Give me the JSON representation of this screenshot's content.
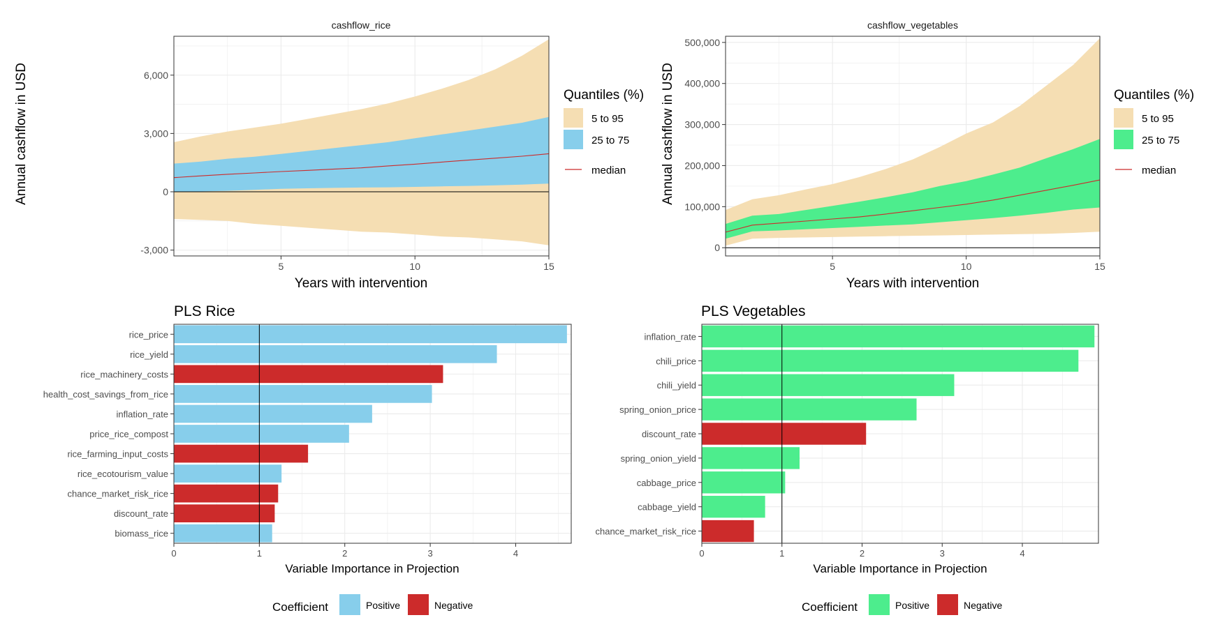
{
  "shared": {
    "ylabel": "Annual cashflow in USD",
    "xlabel": "Years with intervention",
    "vip_xlabel": "Variable Importance in Projection",
    "coefficient_label": "Coefficient",
    "positive_label": "Positive",
    "negative_label": "Negative",
    "quantiles_title": "Quantiles (%)",
    "q_outer_label": "5 to 95",
    "q_inner_label": "25 to 75",
    "median_label": "median"
  },
  "colors": {
    "outer_band": "#f5deb3",
    "rice_inner": "#87ceeb",
    "veg_inner": "#4ded8d",
    "median": "#cc2b2b",
    "negative": "#cc2b2b",
    "grid": "#ebebeb",
    "axis_text": "#4d4d4d"
  },
  "chart_data": [
    {
      "type": "area",
      "title": "cashflow_rice",
      "xlabel": "Years with intervention",
      "ylabel": "Annual cashflow in USD",
      "xlim": [
        1,
        15
      ],
      "ylim": [
        -3300,
        8000
      ],
      "x_ticks": [
        5,
        10,
        15
      ],
      "y_ticks": [
        -3000,
        0,
        3000,
        6000
      ],
      "y_tick_labels": [
        "-3,000",
        "0",
        "3,000",
        "6,000"
      ],
      "x": [
        1,
        2,
        3,
        4,
        5,
        6,
        7,
        8,
        9,
        10,
        11,
        12,
        13,
        14,
        15
      ],
      "series": [
        {
          "name": "5 to 95",
          "lower": [
            -1400,
            -1450,
            -1500,
            -1650,
            -1750,
            -1850,
            -1950,
            -2050,
            -2100,
            -2200,
            -2300,
            -2350,
            -2450,
            -2550,
            -2750
          ],
          "upper": [
            2550,
            2850,
            3100,
            3300,
            3500,
            3750,
            4000,
            4250,
            4550,
            4900,
            5300,
            5750,
            6300,
            7000,
            7850
          ]
        },
        {
          "name": "25 to 75",
          "lower": [
            0,
            20,
            50,
            100,
            150,
            180,
            200,
            220,
            230,
            250,
            280,
            300,
            330,
            370,
            420
          ],
          "upper": [
            1450,
            1550,
            1700,
            1800,
            1950,
            2100,
            2250,
            2400,
            2550,
            2750,
            2950,
            3150,
            3350,
            3550,
            3850
          ]
        },
        {
          "name": "median",
          "values": [
            730,
            820,
            900,
            970,
            1040,
            1100,
            1170,
            1230,
            1330,
            1420,
            1530,
            1630,
            1730,
            1830,
            1960
          ]
        }
      ]
    },
    {
      "type": "area",
      "title": "cashflow_vegetables",
      "xlabel": "Years with intervention",
      "ylabel": "Annual cashflow in USD",
      "xlim": [
        1,
        15
      ],
      "ylim": [
        -20000,
        515000
      ],
      "x_ticks": [
        5,
        10,
        15
      ],
      "y_ticks": [
        0,
        100000,
        200000,
        300000,
        400000,
        500000
      ],
      "y_tick_labels": [
        "0",
        "100,000",
        "200,000",
        "300,000",
        "400,000",
        "500,000"
      ],
      "x": [
        1,
        2,
        3,
        4,
        5,
        6,
        7,
        8,
        9,
        10,
        11,
        12,
        13,
        14,
        15
      ],
      "series": [
        {
          "name": "5 to 95",
          "lower": [
            5000,
            22000,
            24000,
            25000,
            26000,
            27000,
            28000,
            29000,
            30000,
            31000,
            32000,
            33000,
            34000,
            36000,
            39000
          ],
          "upper": [
            92000,
            118000,
            128000,
            142000,
            155000,
            172000,
            192000,
            215000,
            245000,
            278000,
            305000,
            345000,
            395000,
            445000,
            510000
          ]
        },
        {
          "name": "25 to 75",
          "lower": [
            22000,
            40000,
            42000,
            45000,
            48000,
            51000,
            54000,
            57000,
            62000,
            67000,
            72000,
            78000,
            85000,
            93000,
            98000
          ],
          "upper": [
            58000,
            78000,
            82000,
            92000,
            102000,
            112000,
            123000,
            135000,
            150000,
            162000,
            178000,
            195000,
            218000,
            240000,
            265000
          ]
        },
        {
          "name": "median",
          "values": [
            38000,
            55000,
            60000,
            65000,
            70000,
            75000,
            82000,
            90000,
            98000,
            106000,
            116000,
            128000,
            140000,
            152000,
            165000
          ]
        }
      ]
    },
    {
      "type": "bar",
      "orientation": "horizontal",
      "title": "PLS Rice",
      "xlabel": "Variable Importance in Projection",
      "xlim": [
        0,
        4.65
      ],
      "x_ticks": [
        0,
        1,
        2,
        3,
        4
      ],
      "threshold": 1,
      "categories": [
        "rice_price",
        "rice_yield",
        "rice_machinery_costs",
        "health_cost_savings_from_rice",
        "inflation_rate",
        "price_rice_compost",
        "rice_farming_input_costs",
        "rice_ecotourism_value",
        "chance_market_risk_rice",
        "discount_rate",
        "biomass_rice"
      ],
      "values": [
        4.6,
        3.78,
        3.15,
        3.02,
        2.32,
        2.05,
        1.57,
        1.26,
        1.22,
        1.18,
        1.15
      ],
      "signs": [
        "Positive",
        "Positive",
        "Negative",
        "Positive",
        "Positive",
        "Positive",
        "Negative",
        "Positive",
        "Negative",
        "Negative",
        "Positive"
      ]
    },
    {
      "type": "bar",
      "orientation": "horizontal",
      "title": "PLS Vegetables",
      "xlabel": "Variable Importance in Projection",
      "xlim": [
        0,
        4.95
      ],
      "x_ticks": [
        0,
        1,
        2,
        3,
        4
      ],
      "threshold": 1,
      "categories": [
        "inflation_rate",
        "chili_price",
        "chili_yield",
        "spring_onion_price",
        "discount_rate",
        "spring_onion_yield",
        "cabbage_price",
        "cabbage_yield",
        "chance_market_risk_rice"
      ],
      "values": [
        4.9,
        4.7,
        3.15,
        2.68,
        2.05,
        1.22,
        1.04,
        0.79,
        0.65
      ],
      "signs": [
        "Positive",
        "Positive",
        "Positive",
        "Positive",
        "Negative",
        "Positive",
        "Positive",
        "Positive",
        "Negative"
      ]
    }
  ]
}
